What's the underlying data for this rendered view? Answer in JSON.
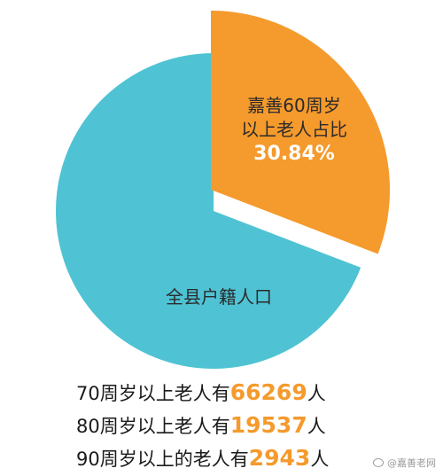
{
  "chart_data": {
    "type": "pie",
    "slices": [
      {
        "name": "嘉善60周岁以上老人占比",
        "label_lines": [
          "嘉善60周岁",
          "以上老人占比"
        ],
        "percent_text": "30.84%",
        "value": 30.84,
        "color": "#f59a2c",
        "exploded": true
      },
      {
        "name": "全县户籍人口",
        "label_lines": [
          "全县户籍人口"
        ],
        "value": 69.16,
        "color": "#4fc3d4",
        "exploded": false
      }
    ]
  },
  "stats": [
    {
      "prefix": "70周岁以上老人有",
      "number": "66269",
      "suffix": "人"
    },
    {
      "prefix": "80周岁以上老人有",
      "number": "19537",
      "suffix": "人"
    },
    {
      "prefix": "90周岁以上的老人有",
      "number": "2943",
      "suffix": "人"
    }
  ],
  "watermark": {
    "icon": "weibo-icon",
    "text": "@嘉善老网"
  }
}
